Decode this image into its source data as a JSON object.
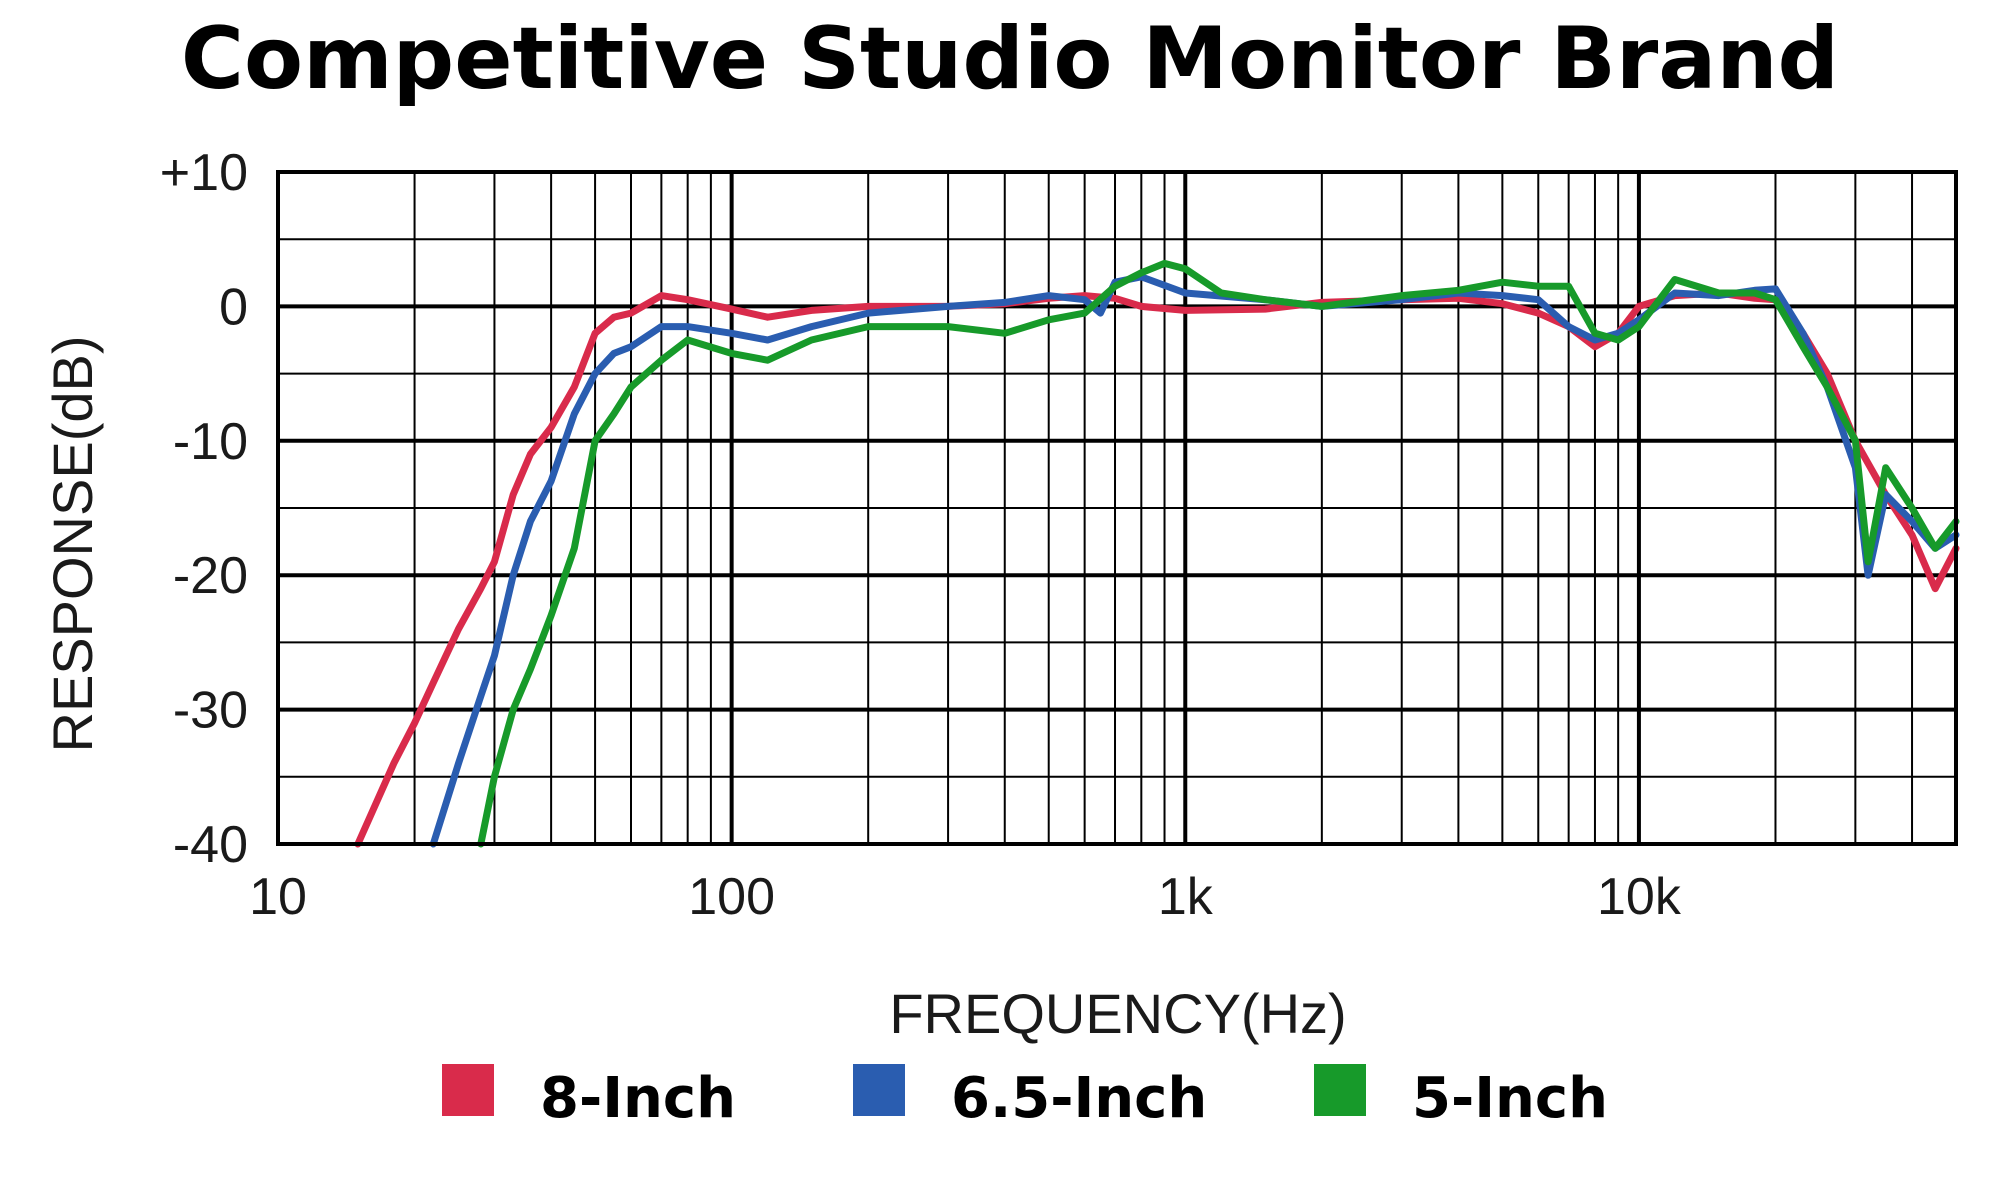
{
  "chart_data": {
    "type": "line",
    "title": "Competitive Studio Monitor Brand",
    "xlabel": "FREQUENCY(Hz)",
    "ylabel": "RESPONSE(dB)",
    "x_scale": "log",
    "xlim": [
      10,
      50000
    ],
    "ylim": [
      -40,
      10
    ],
    "x_ticks": [
      {
        "value": 10,
        "label": "10"
      },
      {
        "value": 100,
        "label": "100"
      },
      {
        "value": 1000,
        "label": "1k"
      },
      {
        "value": 10000,
        "label": "10k"
      }
    ],
    "y_ticks": [
      {
        "value": 10,
        "label": "+10"
      },
      {
        "value": 0,
        "label": "0"
      },
      {
        "value": -10,
        "label": "-10"
      },
      {
        "value": -20,
        "label": "-20"
      },
      {
        "value": -30,
        "label": "-30"
      },
      {
        "value": -40,
        "label": "-40"
      }
    ],
    "grid": true,
    "legend_position": "bottom",
    "series": [
      {
        "name": "8-Inch",
        "color": "#d92b4b",
        "x": [
          15,
          18,
          20,
          22,
          25,
          28,
          30,
          33,
          36,
          40,
          45,
          50,
          55,
          60,
          70,
          80,
          100,
          120,
          150,
          200,
          300,
          400,
          500,
          600,
          700,
          800,
          1000,
          1500,
          2000,
          3000,
          4000,
          5000,
          6000,
          7000,
          8000,
          9000,
          10000,
          12000,
          15000,
          18000,
          20000,
          23000,
          26000,
          30000,
          35000,
          40000,
          45000,
          50000
        ],
        "y": [
          -40,
          -34,
          -31,
          -28,
          -24,
          -21,
          -19,
          -14,
          -11,
          -9,
          -6,
          -2,
          -0.8,
          -0.5,
          0.8,
          0.5,
          -0.2,
          -0.8,
          -0.3,
          0,
          0,
          0.2,
          0.6,
          0.8,
          0.6,
          0,
          -0.3,
          -0.2,
          0.3,
          0.5,
          0.6,
          0.2,
          -0.5,
          -1.5,
          -3,
          -2,
          0,
          0.8,
          1,
          0.6,
          0.5,
          -2,
          -5,
          -10,
          -14,
          -17,
          -21,
          -18
        ]
      },
      {
        "name": "6.5-Inch",
        "color": "#2a5db0",
        "x": [
          22,
          25,
          28,
          30,
          33,
          36,
          40,
          45,
          50,
          55,
          60,
          70,
          80,
          100,
          120,
          150,
          200,
          300,
          400,
          500,
          600,
          650,
          700,
          800,
          1000,
          1500,
          2000,
          3000,
          4000,
          5000,
          6000,
          7000,
          8000,
          9000,
          10000,
          12000,
          15000,
          18000,
          20000,
          23000,
          26000,
          30000,
          32000,
          35000,
          40000,
          45000,
          50000
        ],
        "y": [
          -40,
          -34,
          -29,
          -26,
          -20,
          -16,
          -13,
          -8,
          -5,
          -3.5,
          -3,
          -1.5,
          -1.5,
          -2,
          -2.5,
          -1.5,
          -0.5,
          0,
          0.3,
          0.8,
          0.5,
          -0.5,
          1.8,
          2.2,
          1,
          0.5,
          0,
          0.5,
          1,
          0.8,
          0.5,
          -1.5,
          -2.5,
          -2,
          -1,
          1,
          0.8,
          1.2,
          1.3,
          -2,
          -6,
          -12,
          -20,
          -14,
          -16,
          -18,
          -17
        ]
      },
      {
        "name": "5-Inch",
        "color": "#179a2a",
        "x": [
          28,
          30,
          33,
          36,
          40,
          45,
          50,
          55,
          60,
          70,
          80,
          100,
          120,
          150,
          200,
          300,
          400,
          500,
          600,
          700,
          800,
          900,
          1000,
          1200,
          1500,
          2000,
          3000,
          4000,
          5000,
          6000,
          7000,
          8000,
          9000,
          10000,
          12000,
          15000,
          18000,
          20000,
          23000,
          26000,
          30000,
          32000,
          35000,
          40000,
          45000,
          50000
        ],
        "y": [
          -40,
          -35,
          -30,
          -27,
          -23,
          -18,
          -10,
          -8,
          -6,
          -4,
          -2.5,
          -3.5,
          -4,
          -2.5,
          -1.5,
          -1.5,
          -2,
          -1,
          -0.5,
          1.5,
          2.5,
          3.2,
          2.8,
          1,
          0.5,
          0,
          0.8,
          1.2,
          1.8,
          1.5,
          1.5,
          -2,
          -2.5,
          -1.5,
          2,
          1,
          1,
          0.5,
          -3,
          -6,
          -10,
          -19,
          -12,
          -15,
          -18,
          -16
        ]
      }
    ]
  }
}
